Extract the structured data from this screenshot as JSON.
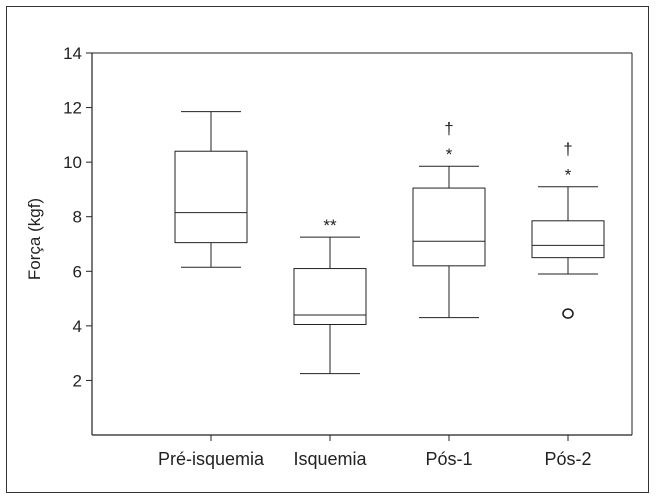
{
  "chart_data": {
    "type": "box",
    "ylabel": "Força (kgf)",
    "ylim": [
      0,
      14
    ],
    "yticks": [
      2,
      4,
      6,
      8,
      10,
      12,
      14
    ],
    "categories": [
      "Pré-isquemia",
      "Isquemia",
      "Pós-1",
      "Pós-2"
    ],
    "boxes": [
      {
        "category": "Pré-isquemia",
        "whisker_low": 6.15,
        "q1": 7.05,
        "median": 8.15,
        "q3": 10.4,
        "whisker_high": 11.85,
        "outliers": [],
        "annotation": ""
      },
      {
        "category": "Isquemia",
        "whisker_low": 2.25,
        "q1": 4.05,
        "median": 4.4,
        "q3": 6.1,
        "whisker_high": 7.25,
        "outliers": [],
        "annotation": "**"
      },
      {
        "category": "Pós-1",
        "whisker_low": 4.3,
        "q1": 6.2,
        "median": 7.1,
        "q3": 9.05,
        "whisker_high": 9.85,
        "outliers": [],
        "annotation": "†\n*"
      },
      {
        "category": "Pós-2",
        "whisker_low": 5.9,
        "q1": 6.5,
        "median": 6.95,
        "q3": 7.85,
        "whisker_high": 9.1,
        "outliers": [
          4.45
        ],
        "annotation": "†\n*"
      }
    ]
  }
}
